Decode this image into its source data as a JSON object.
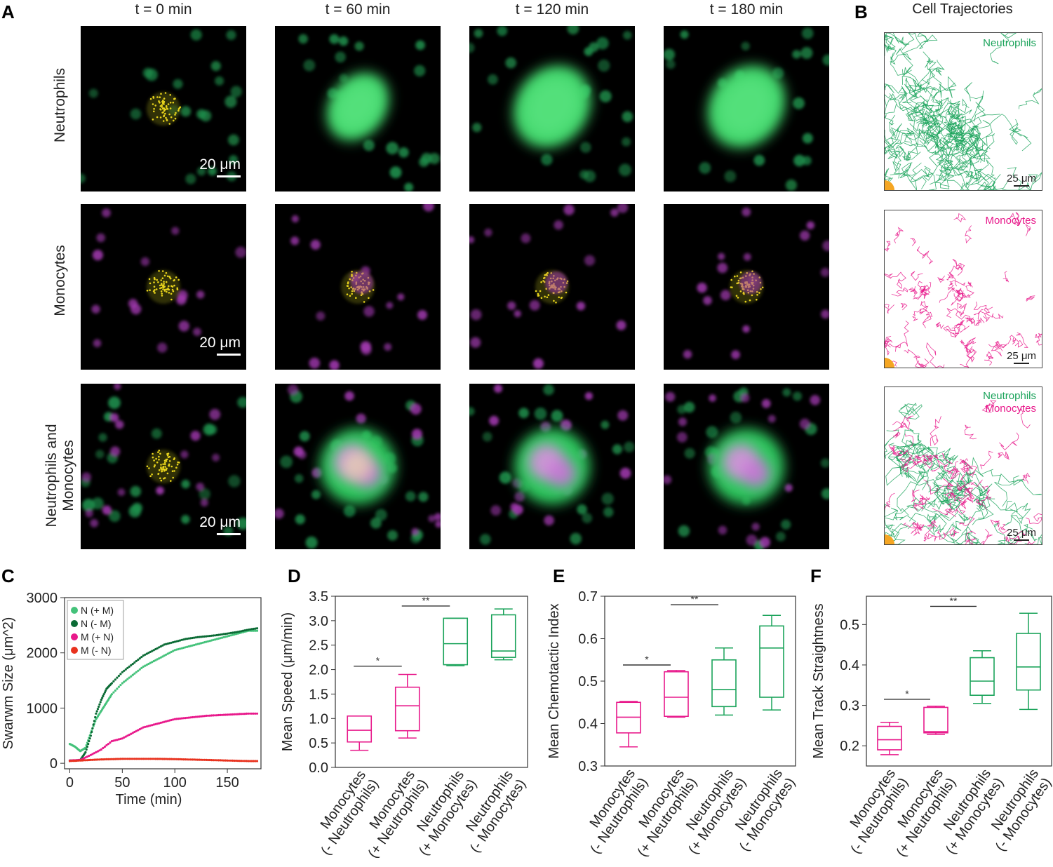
{
  "panels": {
    "a": "A",
    "b": "B",
    "c": "C",
    "d": "D",
    "e": "E",
    "f": "F"
  },
  "panel_a": {
    "columns": [
      "t = 0 min",
      "t = 60 min",
      "t = 120 min",
      "t = 180 min"
    ],
    "rows": [
      "Neutrophils",
      "Monocytes",
      "Neutrophils and Monocytes"
    ],
    "scale_bar": "20 μm"
  },
  "panel_b": {
    "title": "Cell Trajectories",
    "panels": [
      {
        "labels": [
          "Neutrophils"
        ],
        "scale": "25 μm"
      },
      {
        "labels": [
          "Monocytes"
        ],
        "scale": "25 μm"
      },
      {
        "labels": [
          "Neutrophils",
          "Monocytes"
        ],
        "scale": "25 μm"
      }
    ]
  },
  "colors": {
    "neutrophil": "#1aa35a",
    "neutrophil_dark": "#0b6b35",
    "neutrophil_light": "#44c27a",
    "monocyte": "#e8198b",
    "red": "#e8321e",
    "target": "#f5a623"
  },
  "chart_data": [
    {
      "type": "scatter",
      "panel": "C",
      "xlabel": "Time (min)",
      "ylabel": "Swarwm Size (μm^2)",
      "xlim": [
        -5,
        182
      ],
      "ylim": [
        -100,
        3000
      ],
      "xticks": [
        0,
        50,
        100,
        150
      ],
      "yticks": [
        0,
        1000,
        2000,
        3000
      ],
      "legend_position": "top-left",
      "series": [
        {
          "name": "N (+ M)",
          "color": "#44c27a",
          "x": [
            0,
            5,
            10,
            15,
            20,
            25,
            30,
            35,
            40,
            50,
            60,
            70,
            80,
            90,
            100,
            110,
            120,
            130,
            140,
            150,
            160,
            170,
            180
          ],
          "y": [
            350,
            300,
            220,
            280,
            550,
            800,
            950,
            1100,
            1250,
            1450,
            1600,
            1750,
            1850,
            1950,
            2050,
            2100,
            2150,
            2200,
            2250,
            2300,
            2350,
            2400,
            2400
          ]
        },
        {
          "name": "N (- M)",
          "color": "#0b6b35",
          "x": [
            0,
            5,
            10,
            15,
            20,
            25,
            30,
            35,
            40,
            50,
            60,
            70,
            80,
            90,
            100,
            110,
            120,
            130,
            140,
            150,
            160,
            170,
            180
          ],
          "y": [
            50,
            50,
            60,
            200,
            500,
            900,
            1150,
            1350,
            1450,
            1650,
            1800,
            1950,
            2050,
            2150,
            2200,
            2250,
            2280,
            2300,
            2320,
            2350,
            2380,
            2420,
            2450
          ]
        },
        {
          "name": "M (+ N)",
          "color": "#e8198b",
          "x": [
            0,
            10,
            20,
            30,
            40,
            50,
            60,
            70,
            80,
            90,
            100,
            110,
            120,
            130,
            140,
            150,
            160,
            170,
            180
          ],
          "y": [
            50,
            60,
            150,
            250,
            400,
            450,
            550,
            650,
            700,
            750,
            800,
            820,
            840,
            860,
            870,
            880,
            890,
            900,
            900
          ]
        },
        {
          "name": "M (- N)",
          "color": "#e8321e",
          "x": [
            0,
            10,
            20,
            30,
            40,
            50,
            60,
            70,
            80,
            90,
            100,
            110,
            120,
            130,
            140,
            150,
            160,
            170,
            180
          ],
          "y": [
            40,
            50,
            60,
            70,
            75,
            80,
            80,
            80,
            80,
            78,
            75,
            70,
            65,
            60,
            55,
            50,
            45,
            40,
            40
          ]
        }
      ]
    },
    {
      "type": "box",
      "panel": "D",
      "ylabel": "Mean Speed (μm/min)",
      "ylim": [
        0,
        3.5
      ],
      "yticks": [
        0,
        0.5,
        1.0,
        1.5,
        2.0,
        2.5,
        3.0,
        3.5
      ],
      "categories": [
        "Monocytes\n(- Neutrophils)",
        "Monocytes\n(+ Neutrophils)",
        "Neutrophils\n(+ Monocytes)",
        "Neutrophils\n(- Monocytes)"
      ],
      "colors": [
        "#e8198b",
        "#e8198b",
        "#1aa35a",
        "#1aa35a"
      ],
      "boxes": [
        {
          "min": 0.35,
          "q1": 0.52,
          "median": 0.76,
          "q3": 1.05,
          "max": 1.05
        },
        {
          "min": 0.6,
          "q1": 0.75,
          "median": 1.26,
          "q3": 1.64,
          "max": 1.9
        },
        {
          "min": 2.08,
          "q1": 2.1,
          "median": 2.53,
          "q3": 3.05,
          "max": 3.05
        },
        {
          "min": 2.2,
          "q1": 2.25,
          "median": 2.38,
          "q3": 3.12,
          "max": 3.24
        }
      ],
      "significance": [
        {
          "from": 0,
          "to": 1,
          "y": 2.07,
          "label": "*"
        },
        {
          "from": 1,
          "to": 2,
          "y": 3.3,
          "label": "**"
        }
      ]
    },
    {
      "type": "box",
      "panel": "E",
      "ylabel": "Mean Chemotactic Index",
      "ylim": [
        0.3,
        0.7
      ],
      "yticks": [
        0.3,
        0.4,
        0.5,
        0.6,
        0.7
      ],
      "categories": [
        "Monocytes\n(- Neutrophils)",
        "Monocytes\n(+ Neutrophils)",
        "Neutrophils\n(+ Monocytes)",
        "Neutrophils\n(- Monocytes)"
      ],
      "colors": [
        "#e8198b",
        "#e8198b",
        "#1aa35a",
        "#1aa35a"
      ],
      "boxes": [
        {
          "min": 0.345,
          "q1": 0.378,
          "median": 0.415,
          "q3": 0.45,
          "max": 0.452
        },
        {
          "min": 0.415,
          "q1": 0.417,
          "median": 0.462,
          "q3": 0.522,
          "max": 0.525
        },
        {
          "min": 0.42,
          "q1": 0.44,
          "median": 0.48,
          "q3": 0.55,
          "max": 0.578
        },
        {
          "min": 0.432,
          "q1": 0.462,
          "median": 0.578,
          "q3": 0.63,
          "max": 0.655
        }
      ],
      "significance": [
        {
          "from": 0,
          "to": 1,
          "y": 0.538,
          "label": "*"
        },
        {
          "from": 1,
          "to": 2,
          "y": 0.68,
          "label": "**"
        }
      ]
    },
    {
      "type": "box",
      "panel": "F",
      "ylabel": "Mean Track Straightness",
      "ylim": [
        0.15,
        0.57
      ],
      "yticks": [
        0.2,
        0.3,
        0.4,
        0.5
      ],
      "categories": [
        "Monocytes\n(- Neutrophils)",
        "Monocytes\n(+ Neutrophils)",
        "Neutrophils\n(+ Monocytes)",
        "Neutrophils\n(- Monocytes)"
      ],
      "colors": [
        "#e8198b",
        "#e8198b",
        "#1aa35a",
        "#1aa35a"
      ],
      "boxes": [
        {
          "min": 0.178,
          "q1": 0.19,
          "median": 0.215,
          "q3": 0.248,
          "max": 0.258
        },
        {
          "min": 0.228,
          "q1": 0.232,
          "median": 0.235,
          "q3": 0.295,
          "max": 0.298
        },
        {
          "min": 0.305,
          "q1": 0.325,
          "median": 0.36,
          "q3": 0.418,
          "max": 0.435
        },
        {
          "min": 0.29,
          "q1": 0.338,
          "median": 0.395,
          "q3": 0.478,
          "max": 0.528
        }
      ],
      "significance": [
        {
          "from": 0,
          "to": 1,
          "y": 0.315,
          "label": "*"
        },
        {
          "from": 1,
          "to": 2,
          "y": 0.545,
          "label": "**"
        }
      ]
    }
  ]
}
